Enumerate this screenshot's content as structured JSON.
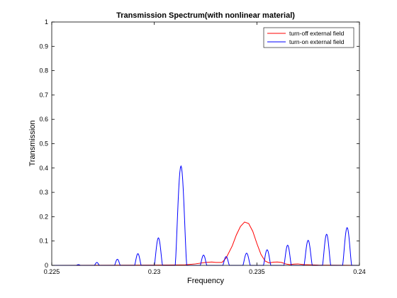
{
  "chart_data": {
    "type": "line",
    "title": "Transmission Spectrum(with nonlinear material)",
    "xlabel": "Frequency",
    "ylabel": "Transmission",
    "xlim": [
      0.225,
      0.24
    ],
    "ylim": [
      0,
      1
    ],
    "xticks": [
      0.225,
      0.23,
      0.235,
      0.24
    ],
    "xtick_labels": [
      "0.225",
      "0.23",
      "0.235",
      "0.24"
    ],
    "yticks": [
      0,
      0.1,
      0.2,
      0.3,
      0.4,
      0.5,
      0.6,
      0.7,
      0.8,
      0.9,
      1
    ],
    "ytick_labels": [
      "0",
      "0.1",
      "0.2",
      "0.3",
      "0.4",
      "0.5",
      "0.6",
      "0.7",
      "0.8",
      "0.9",
      "1"
    ],
    "grid": false,
    "legend_position": "top-right",
    "series": [
      {
        "name": "turn-off external field",
        "color": "#ff0000",
        "x": [
          0.225,
          0.23,
          0.2315,
          0.232,
          0.2325,
          0.2328,
          0.233,
          0.2333,
          0.2335,
          0.2338,
          0.234,
          0.2342,
          0.2344,
          0.2346,
          0.2348,
          0.235,
          0.2352,
          0.2354,
          0.2356,
          0.2358,
          0.236,
          0.2362,
          0.2364,
          0.2366,
          0.2368,
          0.237,
          0.2373,
          0.2376,
          0.238,
          0.24
        ],
        "y": [
          0,
          0.001,
          0.002,
          0.006,
          0.012,
          0.014,
          0.012,
          0.012,
          0.03,
          0.08,
          0.125,
          0.16,
          0.178,
          0.172,
          0.14,
          0.09,
          0.045,
          0.018,
          0.01,
          0.013,
          0.014,
          0.012,
          0.006,
          0.003,
          0.005,
          0.006,
          0.003,
          0.002,
          0.001,
          0
        ]
      },
      {
        "name": "turn-on external field",
        "color": "#0000ff",
        "peaks": [
          {
            "x": 0.2263,
            "y": 0.003,
            "w": 0.0001
          },
          {
            "x": 0.2272,
            "y": 0.012,
            "w": 0.00012
          },
          {
            "x": 0.2282,
            "y": 0.025,
            "w": 0.00014
          },
          {
            "x": 0.2292,
            "y": 0.048,
            "w": 0.00016
          },
          {
            "x": 0.2302,
            "y": 0.113,
            "w": 0.0002
          },
          {
            "x": 0.2313,
            "y": 0.408,
            "w": 0.00028
          },
          {
            "x": 0.2324,
            "y": 0.042,
            "w": 0.00016
          },
          {
            "x": 0.2335,
            "y": 0.036,
            "w": 0.00016
          },
          {
            "x": 0.2345,
            "y": 0.05,
            "w": 0.00018
          },
          {
            "x": 0.2355,
            "y": 0.064,
            "w": 0.00018
          },
          {
            "x": 0.2365,
            "y": 0.083,
            "w": 0.00018
          },
          {
            "x": 0.2375,
            "y": 0.103,
            "w": 0.0002
          },
          {
            "x": 0.2384,
            "y": 0.128,
            "w": 0.0002
          },
          {
            "x": 0.2394,
            "y": 0.155,
            "w": 0.00022
          }
        ]
      }
    ]
  }
}
